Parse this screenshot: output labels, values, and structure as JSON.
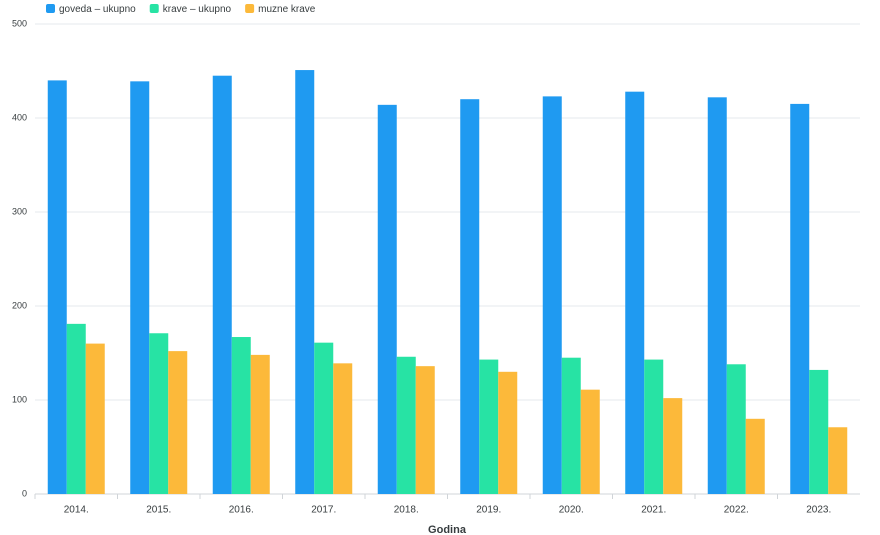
{
  "chart_data": {
    "type": "bar",
    "categories": [
      "2014.",
      "2015.",
      "2016.",
      "2017.",
      "2018.",
      "2019.",
      "2020.",
      "2021.",
      "2022.",
      "2023."
    ],
    "series": [
      {
        "name": "goveda – ukupno",
        "color": "#1f9af1",
        "values": [
          440,
          439,
          445,
          451,
          414,
          420,
          423,
          428,
          422,
          415
        ]
      },
      {
        "name": "krave – ukupno",
        "color": "#27e3a4",
        "values": [
          181,
          171,
          167,
          161,
          146,
          143,
          145,
          143,
          138,
          132
        ]
      },
      {
        "name": "muzne krave",
        "color": "#fcb93a",
        "values": [
          160,
          152,
          148,
          139,
          136,
          130,
          111,
          102,
          80,
          71
        ]
      }
    ],
    "xlabel": "Godina",
    "ylim": [
      0,
      500
    ],
    "yticks": [
      0,
      100,
      200,
      300,
      400,
      500
    ],
    "grid": true,
    "legend": "top-left"
  }
}
